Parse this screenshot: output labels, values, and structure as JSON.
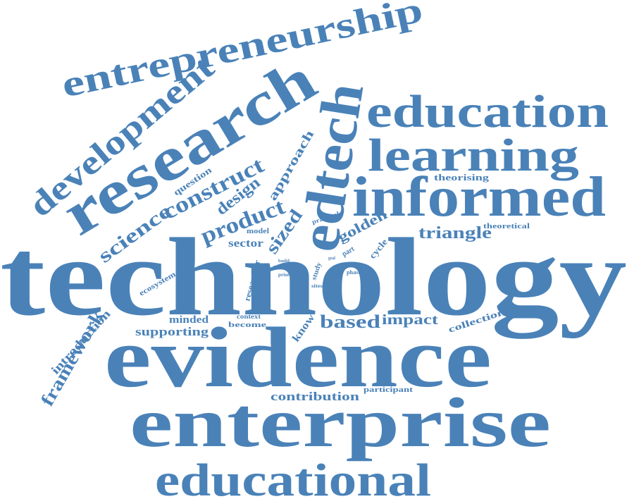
{
  "cloud": {
    "color": "#4a82b8",
    "words": [
      "technology",
      "evidence",
      "enterprise",
      "educational",
      "informed",
      "learning",
      "education",
      "research",
      "edtech",
      "entrepreneurship",
      "development",
      "construct",
      "science",
      "product",
      "design",
      "approach",
      "question",
      "sized",
      "golden",
      "triangle",
      "theorising",
      "theoretical",
      "sector",
      "model",
      "practical",
      "cycle",
      "more",
      "prior",
      "build",
      "part",
      "study",
      "goal",
      "action",
      "phase",
      "sites",
      "tool",
      "ecosystem",
      "researcher",
      "context",
      "become",
      "minded",
      "supporting",
      "introduction",
      "framework",
      "based",
      "impact",
      "know",
      "collection",
      "contribution",
      "participant"
    ]
  }
}
